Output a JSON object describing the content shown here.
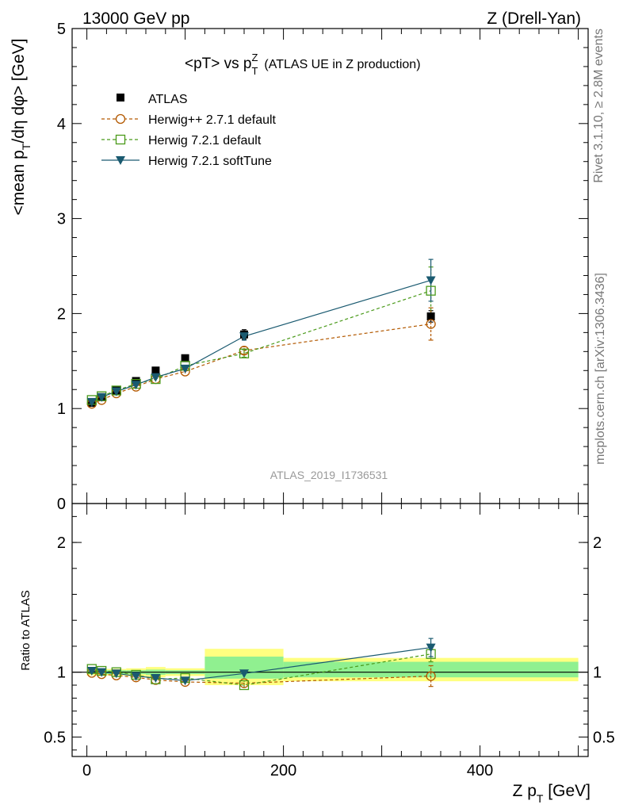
{
  "header": {
    "energy_label": "13000 GeV pp",
    "process_label": "Z (Drell-Yan)"
  },
  "side_labels": {
    "rivet": "Rivet 3.1.10, ≥ 2.8M events",
    "mcplots": "mcplots.cern.ch [arXiv:1306.3436]"
  },
  "watermark": "ATLAS_2019_I1736531",
  "colors": {
    "atlas": "#000000",
    "herwigpp": "#b35900",
    "herwig721_default": "#4a9a1a",
    "herwig721_softtune": "#1a5a70",
    "band_yellow": "#ffff80",
    "band_green": "#90f090"
  },
  "chart_data": [
    {
      "type": "scatter",
      "title": "<pT> vs p_T^Z (ATLAS UE in Z production)",
      "title_main": "<pT> vs p",
      "title_sup": "Z",
      "title_sub": "T",
      "title_extra": "(ATLAS UE in Z production)",
      "ylabel": "<mean p_T/dη dφ> [GeV]",
      "ylabel_parts": {
        "a": "<mean p",
        "sub": "T",
        "b": "/dη dφ> [GeV]"
      },
      "xlim": [
        -15,
        510
      ],
      "ylim": [
        0,
        5
      ],
      "yticks": [
        0,
        1,
        2,
        3,
        4,
        5
      ],
      "ytick_labels": [
        "0",
        "1",
        "2",
        "3",
        "4",
        "5"
      ],
      "legend_position": "top-left",
      "x": [
        5,
        15,
        30,
        50,
        70,
        100,
        160,
        350
      ],
      "x_bins": [
        [
          0,
          10
        ],
        [
          10,
          20
        ],
        [
          20,
          40
        ],
        [
          40,
          60
        ],
        [
          60,
          80
        ],
        [
          80,
          120
        ],
        [
          120,
          200
        ],
        [
          200,
          500
        ]
      ],
      "series": [
        {
          "name": "ATLAS",
          "key": "atlas",
          "marker": "square-filled",
          "line": "none",
          "values": [
            1.06,
            1.12,
            1.19,
            1.29,
            1.4,
            1.53,
            1.78,
            1.97
          ],
          "errors": [
            0.02,
            0.02,
            0.02,
            0.02,
            0.03,
            0.03,
            0.05,
            0.06
          ]
        },
        {
          "name": "Herwig++ 2.7.1 default",
          "key": "herwigpp",
          "marker": "circle-open",
          "line": "dashed",
          "values": [
            1.05,
            1.09,
            1.16,
            1.23,
            1.31,
            1.39,
            1.61,
            1.89
          ],
          "errors": [
            0.01,
            0.01,
            0.01,
            0.01,
            0.02,
            0.02,
            0.04,
            0.17
          ]
        },
        {
          "name": "Herwig 7.2.1 default",
          "key": "herwig721_default",
          "marker": "square-open",
          "line": "dashed",
          "values": [
            1.09,
            1.13,
            1.19,
            1.26,
            1.31,
            1.45,
            1.58,
            2.24
          ],
          "errors": [
            0.01,
            0.01,
            0.01,
            0.01,
            0.02,
            0.02,
            0.04,
            0.25
          ]
        },
        {
          "name": "Herwig 7.2.1 softTune",
          "key": "herwig721_softtune",
          "marker": "triangle-down-filled",
          "line": "solid",
          "values": [
            1.07,
            1.12,
            1.18,
            1.25,
            1.33,
            1.42,
            1.76,
            2.35
          ],
          "errors": [
            0.01,
            0.01,
            0.01,
            0.01,
            0.02,
            0.02,
            0.04,
            0.22
          ]
        }
      ]
    },
    {
      "type": "scatter",
      "title": "",
      "ylabel": "Ratio to ATLAS",
      "xlabel": "Z p_T [GeV]",
      "xlabel_parts": {
        "a": "Z p",
        "sub": "T",
        "b": " [GeV]"
      },
      "xlim": [
        -15,
        510
      ],
      "ylim": [
        0.35,
        2.3
      ],
      "yticks": [
        0.5,
        1,
        2
      ],
      "ytick_labels": [
        "0.5",
        "1",
        "2"
      ],
      "xticks": [
        0,
        200,
        400
      ],
      "xtick_labels": [
        "0",
        "200",
        "400"
      ],
      "reference_line": 1,
      "bands": [
        {
          "x": [
            0,
            10
          ],
          "yellow": [
            0.975,
            1.025
          ],
          "green": [
            0.985,
            1.015
          ]
        },
        {
          "x": [
            10,
            20
          ],
          "yellow": [
            0.975,
            1.025
          ],
          "green": [
            0.985,
            1.015
          ]
        },
        {
          "x": [
            20,
            40
          ],
          "yellow": [
            0.975,
            1.025
          ],
          "green": [
            0.985,
            1.015
          ]
        },
        {
          "x": [
            40,
            60
          ],
          "yellow": [
            0.97,
            1.03
          ],
          "green": [
            0.985,
            1.015
          ]
        },
        {
          "x": [
            60,
            80
          ],
          "yellow": [
            0.96,
            1.04
          ],
          "green": [
            0.98,
            1.02
          ]
        },
        {
          "x": [
            80,
            120
          ],
          "yellow": [
            0.97,
            1.03
          ],
          "green": [
            0.985,
            1.015
          ]
        },
        {
          "x": [
            120,
            200
          ],
          "yellow": [
            0.9,
            1.18
          ],
          "green": [
            0.95,
            1.12
          ]
        },
        {
          "x": [
            200,
            500
          ],
          "yellow": [
            0.93,
            1.11
          ],
          "green": [
            0.96,
            1.08
          ]
        }
      ],
      "series": [
        {
          "name": "Herwig++ 2.7.1 default",
          "key": "herwigpp",
          "marker": "circle-open",
          "line": "dashed",
          "values": [
            0.995,
            0.985,
            0.975,
            0.96,
            0.94,
            0.925,
            0.915,
            0.97
          ],
          "errors": [
            0.01,
            0.01,
            0.01,
            0.01,
            0.01,
            0.01,
            0.02,
            0.08
          ]
        },
        {
          "name": "Herwig 7.2.1 default",
          "key": "herwig721_default",
          "marker": "square-open",
          "line": "dashed",
          "values": [
            1.025,
            1.01,
            1.0,
            0.98,
            0.945,
            0.955,
            0.9,
            1.14
          ],
          "errors": [
            0.01,
            0.01,
            0.01,
            0.01,
            0.01,
            0.01,
            0.02,
            0.06
          ]
        },
        {
          "name": "Herwig 7.2.1 softTune",
          "key": "herwig721_softtune",
          "marker": "triangle-down-filled",
          "line": "solid",
          "values": [
            1.01,
            1.0,
            0.99,
            0.97,
            0.955,
            0.935,
            0.99,
            1.19
          ],
          "errors": [
            0.01,
            0.01,
            0.01,
            0.01,
            0.01,
            0.01,
            0.02,
            0.07
          ]
        }
      ]
    }
  ]
}
